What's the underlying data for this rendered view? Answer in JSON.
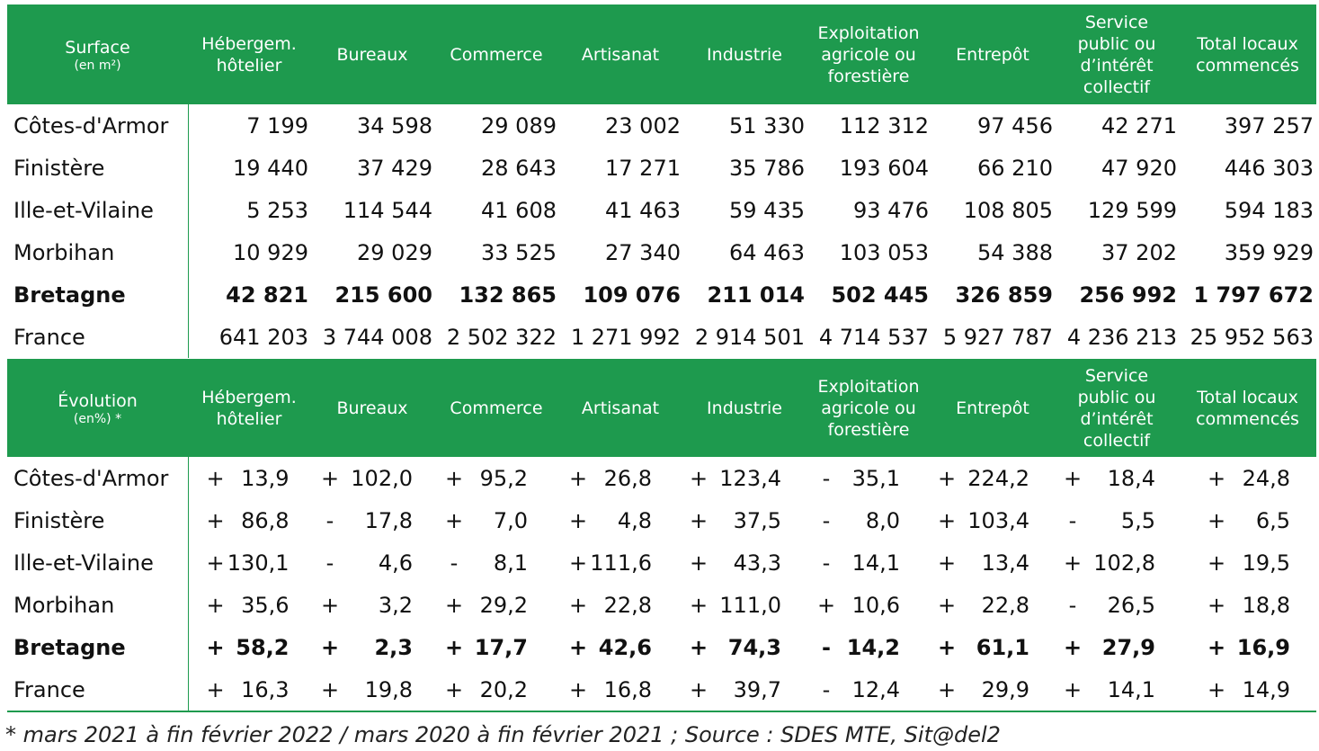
{
  "surface": {
    "header": {
      "corner": "Surface",
      "corner_sub": "(en m²)",
      "columns": [
        "Hébergem.|hôtelier",
        "Bureaux",
        "Commerce",
        "Artisanat",
        "Industrie",
        "Exploitation|agricole ou|forestière",
        "Entrepôt",
        "Service|public ou|d’intérêt|collectif",
        "Total locaux|commencés"
      ]
    },
    "rows": [
      {
        "name": "Côtes-d'Armor",
        "bold": false,
        "values": [
          "7 199",
          "34 598",
          "29 089",
          "23 002",
          "51 330",
          "112 312",
          "97 456",
          "42 271",
          "397 257"
        ]
      },
      {
        "name": "Finistère",
        "bold": false,
        "values": [
          "19 440",
          "37 429",
          "28 643",
          "17 271",
          "35 786",
          "193 604",
          "66 210",
          "47 920",
          "446 303"
        ]
      },
      {
        "name": "Ille-et-Vilaine",
        "bold": false,
        "values": [
          "5 253",
          "114 544",
          "41 608",
          "41 463",
          "59 435",
          "93 476",
          "108 805",
          "129 599",
          "594 183"
        ]
      },
      {
        "name": "Morbihan",
        "bold": false,
        "values": [
          "10 929",
          "29 029",
          "33 525",
          "27 340",
          "64 463",
          "103 053",
          "54 388",
          "37 202",
          "359 929"
        ]
      },
      {
        "name": "Bretagne",
        "bold": true,
        "values": [
          "42 821",
          "215 600",
          "132 865",
          "109 076",
          "211 014",
          "502 445",
          "326 859",
          "256 992",
          "1 797 672"
        ]
      },
      {
        "name": "France",
        "bold": false,
        "values": [
          "641 203",
          "3 744 008",
          "2 502 322",
          "1 271 992",
          "2 914 501",
          "4 714 537",
          "5 927 787",
          "4 236 213",
          "25 952 563"
        ]
      }
    ]
  },
  "evolution": {
    "header": {
      "corner": "Évolution",
      "corner_sub": "(en%) *",
      "columns": [
        "Hébergem.|hôtelier",
        "Bureaux",
        "Commerce",
        "Artisanat",
        "Industrie",
        "Exploitation|agricole ou|forestière",
        "Entrepôt",
        "Service|public ou|d’intérêt|collectif",
        "Total locaux|commencés"
      ]
    },
    "rows": [
      {
        "name": "Côtes-d'Armor",
        "bold": false,
        "values": [
          [
            "+",
            "13,9"
          ],
          [
            "+",
            "102,0"
          ],
          [
            "+",
            "95,2"
          ],
          [
            "+",
            "26,8"
          ],
          [
            "+",
            "123,4"
          ],
          [
            "-",
            "35,1"
          ],
          [
            "+",
            "224,2"
          ],
          [
            "+",
            "18,4"
          ],
          [
            "+",
            "24,8"
          ]
        ]
      },
      {
        "name": "Finistère",
        "bold": false,
        "values": [
          [
            "+",
            "86,8"
          ],
          [
            "-",
            "17,8"
          ],
          [
            "+",
            "7,0"
          ],
          [
            "+",
            "4,8"
          ],
          [
            "+",
            "37,5"
          ],
          [
            "-",
            "8,0"
          ],
          [
            "+",
            "103,4"
          ],
          [
            "-",
            "5,5"
          ],
          [
            "+",
            "6,5"
          ]
        ]
      },
      {
        "name": "Ille-et-Vilaine",
        "bold": false,
        "values": [
          [
            "+",
            "130,1"
          ],
          [
            "-",
            "4,6"
          ],
          [
            "-",
            "8,1"
          ],
          [
            "+",
            "111,6"
          ],
          [
            "+",
            "43,3"
          ],
          [
            "-",
            "14,1"
          ],
          [
            "+",
            "13,4"
          ],
          [
            "+",
            "102,8"
          ],
          [
            "+",
            "19,5"
          ]
        ]
      },
      {
        "name": "Morbihan",
        "bold": false,
        "values": [
          [
            "+",
            "35,6"
          ],
          [
            "+",
            "3,2"
          ],
          [
            "+",
            "29,2"
          ],
          [
            "+",
            "22,8"
          ],
          [
            "+",
            "111,0"
          ],
          [
            "+",
            "10,6"
          ],
          [
            "+",
            "22,8"
          ],
          [
            "-",
            "26,5"
          ],
          [
            "+",
            "18,8"
          ]
        ]
      },
      {
        "name": "Bretagne",
        "bold": true,
        "values": [
          [
            "+",
            "58,2"
          ],
          [
            "+",
            "2,3"
          ],
          [
            "+",
            "17,7"
          ],
          [
            "+",
            "42,6"
          ],
          [
            "+",
            "74,3"
          ],
          [
            "-",
            "14,2"
          ],
          [
            "+",
            "61,1"
          ],
          [
            "+",
            "27,9"
          ],
          [
            "+",
            "16,9"
          ]
        ]
      },
      {
        "name": "France",
        "bold": false,
        "values": [
          [
            "+",
            "16,3"
          ],
          [
            "+",
            "19,8"
          ],
          [
            "+",
            "20,2"
          ],
          [
            "+",
            "16,8"
          ],
          [
            "+",
            "39,7"
          ],
          [
            "-",
            "12,4"
          ],
          [
            "+",
            "29,9"
          ],
          [
            "+",
            "14,1"
          ],
          [
            "+",
            "14,9"
          ]
        ]
      }
    ]
  },
  "footnote": "* mars 2021 à fin février 2022 / mars 2020 à fin février 2021 ; Source : SDES MTE, Sit@del2",
  "colors": {
    "header_green": "#1e9a4e",
    "header_text": "#ffffff"
  }
}
